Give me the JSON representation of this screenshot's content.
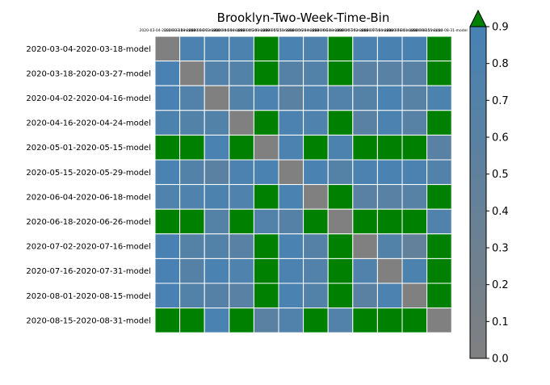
{
  "chart_data": {
    "type": "heatmap",
    "title": "Brooklyn-Two-Week-Time-Bin",
    "row_labels": [
      "2020-03-04-2020-03-18-model",
      "2020-03-18-2020-03-27-model",
      "2020-04-02-2020-04-16-model",
      "2020-04-16-2020-04-24-model",
      "2020-05-01-2020-05-15-model",
      "2020-05-15-2020-05-29-model",
      "2020-06-04-2020-06-18-model",
      "2020-06-18-2020-06-26-model",
      "2020-07-02-2020-07-16-model",
      "2020-07-16-2020-07-31-model",
      "2020-08-01-2020-08-15-model",
      "2020-08-15-2020-08-31-model"
    ],
    "col_labels": [
      "2020-03-04-2020-03-18-model",
      "2020-03-18-2020-03-27-model",
      "2020-04-02-2020-04-16-model",
      "2020-04-16-2020-04-24-model",
      "2020-05-01-2020-05-15-model",
      "2020-05-15-2020-05-29-model",
      "2020-06-04-2020-06-18-model",
      "2020-06-18-2020-06-26-model",
      "2020-07-02-2020-07-16-model",
      "2020-07-16-2020-07-31-model",
      "2020-08-01-2020-08-15-model",
      "2020-08-15-2020-08-31-model"
    ],
    "values": [
      [
        0.0,
        0.82,
        0.82,
        0.8,
        1.0,
        0.84,
        0.78,
        1.0,
        0.83,
        0.85,
        0.85,
        1.0
      ],
      [
        0.86,
        0.0,
        0.72,
        0.7,
        1.0,
        0.66,
        0.7,
        1.0,
        0.62,
        0.6,
        0.62,
        1.0
      ],
      [
        0.86,
        0.72,
        0.0,
        0.7,
        0.82,
        0.58,
        0.78,
        0.72,
        0.68,
        0.84,
        0.64,
        0.8
      ],
      [
        0.8,
        0.7,
        0.7,
        0.0,
        1.0,
        0.82,
        0.76,
        1.0,
        0.62,
        0.82,
        0.64,
        1.0
      ],
      [
        1.0,
        1.0,
        0.84,
        1.0,
        0.0,
        0.83,
        1.0,
        0.8,
        1.0,
        1.0,
        1.0,
        0.62
      ],
      [
        0.84,
        0.7,
        0.58,
        0.82,
        0.84,
        0.0,
        0.84,
        0.68,
        0.82,
        0.84,
        0.82,
        0.72
      ],
      [
        0.76,
        0.76,
        0.8,
        0.76,
        1.0,
        0.84,
        0.0,
        1.0,
        0.62,
        0.62,
        0.64,
        1.0
      ],
      [
        1.0,
        1.0,
        0.68,
        1.0,
        0.72,
        0.66,
        1.0,
        0.0,
        1.0,
        1.0,
        1.0,
        0.74
      ],
      [
        0.86,
        0.68,
        0.7,
        0.62,
        1.0,
        0.84,
        0.66,
        1.0,
        0.0,
        0.7,
        0.45,
        1.0
      ],
      [
        0.86,
        0.66,
        0.84,
        0.76,
        1.0,
        0.82,
        0.72,
        1.0,
        0.74,
        0.0,
        0.8,
        1.0
      ],
      [
        0.86,
        0.7,
        0.66,
        0.62,
        1.0,
        0.84,
        0.7,
        1.0,
        0.58,
        0.82,
        0.0,
        1.0
      ],
      [
        1.0,
        1.0,
        0.84,
        1.0,
        0.58,
        0.74,
        1.0,
        0.72,
        1.0,
        1.0,
        1.0,
        0.0
      ]
    ],
    "colorbar": {
      "min": 0.0,
      "max": 0.9,
      "ticks": [
        "0.0",
        "0.1",
        "0.2",
        "0.3",
        "0.4",
        "0.5",
        "0.6",
        "0.7",
        "0.8",
        "0.9"
      ],
      "extend": "max"
    },
    "colors": {
      "low": "#808080",
      "high": "#4682b4",
      "over": "#008000",
      "grid": "#ffffff"
    }
  }
}
